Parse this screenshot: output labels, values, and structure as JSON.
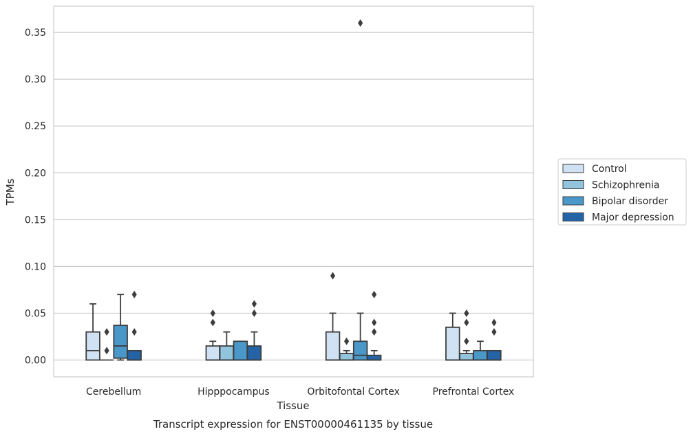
{
  "caption": "Transcript expression for ENST00000461135 by tissue",
  "chart_data": {
    "type": "box",
    "xlabel": "Tissue",
    "ylabel": "TPMs",
    "ylim": [
      -0.018,
      0.378
    ],
    "yticks": [
      "0.00",
      "0.05",
      "0.10",
      "0.15",
      "0.20",
      "0.25",
      "0.30",
      "0.35"
    ],
    "grid": "horizontal",
    "legend_position": "right",
    "categories": [
      "Cerebellum",
      "Hipppocampus",
      "Orbitofontal Cortex",
      "Prefrontal Cortex"
    ],
    "series": [
      {
        "name": "Control",
        "color": "#cfe1f2",
        "boxes": [
          {
            "q1": 0.0,
            "median": 0.01,
            "q3": 0.03,
            "whisker_low": 0.0,
            "whisker_high": 0.06,
            "outliers": []
          },
          {
            "q1": 0.0,
            "median": 0.0,
            "q3": 0.015,
            "whisker_low": 0.0,
            "whisker_high": 0.02,
            "outliers": [
              0.04,
              0.05
            ]
          },
          {
            "q1": 0.0,
            "median": 0.0,
            "q3": 0.03,
            "whisker_low": 0.0,
            "whisker_high": 0.05,
            "outliers": [
              0.09
            ]
          },
          {
            "q1": 0.0,
            "median": 0.0,
            "q3": 0.035,
            "whisker_low": 0.0,
            "whisker_high": 0.05,
            "outliers": []
          }
        ]
      },
      {
        "name": "Schizophrenia",
        "color": "#93c4de",
        "boxes": [
          {
            "q1": 0.0,
            "median": 0.0,
            "q3": 0.0,
            "whisker_low": 0.0,
            "whisker_high": 0.0,
            "outliers": [
              0.01,
              0.03
            ]
          },
          {
            "q1": 0.0,
            "median": 0.0,
            "q3": 0.015,
            "whisker_low": 0.0,
            "whisker_high": 0.03,
            "outliers": []
          },
          {
            "q1": 0.0,
            "median": 0.0,
            "q3": 0.007,
            "whisker_low": 0.0,
            "whisker_high": 0.01,
            "outliers": [
              0.02
            ]
          },
          {
            "q1": 0.0,
            "median": 0.0,
            "q3": 0.007,
            "whisker_low": 0.0,
            "whisker_high": 0.01,
            "outliers": [
              0.02,
              0.04,
              0.05
            ]
          }
        ]
      },
      {
        "name": "Bipolar disorder",
        "color": "#4a98c9",
        "boxes": [
          {
            "q1": 0.002,
            "median": 0.015,
            "q3": 0.037,
            "whisker_low": 0.0,
            "whisker_high": 0.07,
            "outliers": []
          },
          {
            "q1": 0.0,
            "median": 0.0,
            "q3": 0.02,
            "whisker_low": 0.0,
            "whisker_high": 0.02,
            "outliers": []
          },
          {
            "q1": 0.0,
            "median": 0.005,
            "q3": 0.02,
            "whisker_low": 0.0,
            "whisker_high": 0.05,
            "outliers": [
              0.36
            ]
          },
          {
            "q1": 0.0,
            "median": 0.0,
            "q3": 0.01,
            "whisker_low": 0.0,
            "whisker_high": 0.02,
            "outliers": []
          }
        ]
      },
      {
        "name": "Major depression",
        "color": "#2464a6",
        "boxes": [
          {
            "q1": 0.0,
            "median": 0.0,
            "q3": 0.01,
            "whisker_low": 0.0,
            "whisker_high": 0.01,
            "outliers": [
              0.03,
              0.07
            ]
          },
          {
            "q1": 0.0,
            "median": 0.0,
            "q3": 0.015,
            "whisker_low": 0.0,
            "whisker_high": 0.03,
            "outliers": [
              0.05,
              0.06
            ]
          },
          {
            "q1": 0.0,
            "median": 0.0,
            "q3": 0.005,
            "whisker_low": 0.0,
            "whisker_high": 0.01,
            "outliers": [
              0.03,
              0.04,
              0.07
            ]
          },
          {
            "q1": 0.0,
            "median": 0.0,
            "q3": 0.01,
            "whisker_low": 0.0,
            "whisker_high": 0.01,
            "outliers": [
              0.03,
              0.04
            ]
          }
        ]
      }
    ]
  }
}
